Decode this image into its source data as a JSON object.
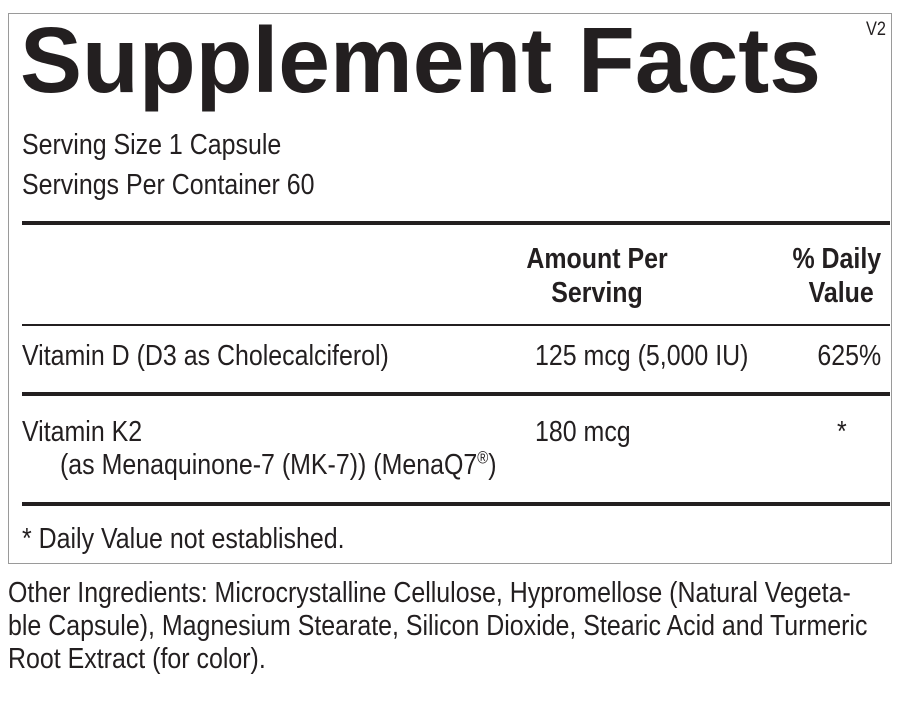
{
  "label": {
    "title": "Supplement Facts",
    "version": "V2",
    "serving_size": "Serving Size 1 Capsule",
    "servings_per_container": "Servings Per Container 60",
    "headers": {
      "amount_line1": "Amount Per",
      "amount_line2": "Serving",
      "dv_line1": "% Daily",
      "dv_line2": "Value"
    },
    "rows": [
      {
        "name": "Vitamin D (D3 as Cholecalciferol)",
        "amount": "125 mcg (5,000 IU)",
        "dv": "625%"
      },
      {
        "name": "Vitamin K2",
        "sub": "(as Menaquinone-7 (MK-7)) (MenaQ7",
        "sub_mark": "®",
        "sub_end": ")",
        "amount": "180 mcg",
        "dv": "*"
      }
    ],
    "footnote": "* Daily Value not established."
  },
  "other_ingredients": {
    "lines": [
      "Other Ingredients: Microcrystalline Cellulose, Hypromellose (Natural Vegeta-",
      "ble Capsule), Magnesium Stearate, Silicon Dioxide, Stearic Acid and Turmeric",
      "Root Extract (for color)."
    ]
  }
}
